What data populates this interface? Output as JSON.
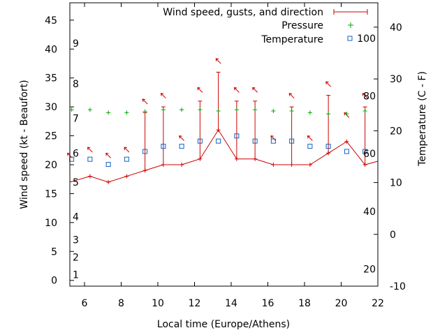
{
  "chart_data": {
    "type": "line",
    "xlabel": "Local time (Europe/Athens)",
    "ylabel_left": "Wind speed (kt - Beaufort)",
    "ylabel_right": "Temperature (C - F)",
    "xlim": [
      5.2,
      22
    ],
    "ylim_left": [
      -1,
      48
    ],
    "ylim_right": [
      -10,
      44.7
    ],
    "x_ticks": [
      6,
      8,
      10,
      12,
      14,
      16,
      18,
      20,
      22
    ],
    "y_left_ticks": [
      0,
      5,
      10,
      15,
      20,
      25,
      30,
      35,
      40,
      45
    ],
    "y_right_ticks": [
      -10,
      0,
      10,
      20,
      30,
      40
    ],
    "beaufort_labels": [
      {
        "label": "1",
        "kt": 1
      },
      {
        "label": "2",
        "kt": 4
      },
      {
        "label": "3",
        "kt": 7
      },
      {
        "label": "4",
        "kt": 11
      },
      {
        "label": "5",
        "kt": 17
      },
      {
        "label": "6",
        "kt": 22
      },
      {
        "label": "7",
        "kt": 28
      },
      {
        "label": "8",
        "kt": 34
      },
      {
        "label": "9",
        "kt": 41
      }
    ],
    "fahrenheit_labels": [
      {
        "label": "20",
        "celsius": -6.7
      },
      {
        "label": "40",
        "celsius": 4.4
      },
      {
        "label": "60",
        "celsius": 15.6
      },
      {
        "label": "80",
        "celsius": 26.7
      },
      {
        "label": "100",
        "celsius": 37.8
      }
    ],
    "legend_position": "top-right",
    "series": [
      {
        "name": "Wind speed, gusts, and direction",
        "color": "#cc0000",
        "axis": "left",
        "x": [
          5.2,
          6.3,
          7.3,
          8.3,
          9.3,
          10.3,
          11.3,
          12.3,
          13.3,
          14.3,
          15.3,
          16.3,
          17.3,
          18.3,
          19.3,
          20.3,
          21.3,
          22
        ],
        "values": [
          17,
          18,
          17,
          18,
          19,
          20,
          20,
          21,
          26,
          21,
          21,
          20,
          20,
          20,
          22,
          24,
          20,
          20.6
        ],
        "gusts": [
          null,
          null,
          null,
          null,
          29,
          30,
          null,
          31,
          36,
          31,
          31,
          null,
          30,
          null,
          32,
          null,
          30,
          null
        ],
        "direction_deg": [
          315,
          315,
          315,
          315,
          315,
          315,
          315,
          315,
          315,
          315,
          315,
          315,
          315,
          315,
          315,
          315,
          315,
          null
        ]
      },
      {
        "name": "Pressure",
        "color": "#00aa00",
        "axis": "left",
        "x": [
          5.3,
          6.3,
          7.3,
          8.3,
          9.3,
          10.3,
          11.3,
          12.3,
          13.3,
          14.3,
          15.3,
          16.3,
          17.3,
          18.3,
          19.3,
          20.3,
          21.3
        ],
        "values": [
          29.5,
          29.5,
          29.0,
          29.0,
          29.2,
          29.5,
          29.5,
          29.5,
          29.3,
          29.5,
          29.5,
          29.3,
          29.3,
          29.0,
          28.8,
          28.8,
          29.3
        ]
      },
      {
        "name": "Temperature",
        "color": "#1060c0",
        "axis": "right",
        "x": [
          5.3,
          6.3,
          7.3,
          8.3,
          9.3,
          10.3,
          11.3,
          12.3,
          13.3,
          14.3,
          15.3,
          16.3,
          17.3,
          18.3,
          19.3,
          20.3,
          21.3
        ],
        "values": [
          14.5,
          14.5,
          13.5,
          14.5,
          16,
          17,
          17,
          18,
          18,
          19,
          18,
          18,
          18,
          17,
          17,
          16,
          16
        ]
      }
    ]
  }
}
